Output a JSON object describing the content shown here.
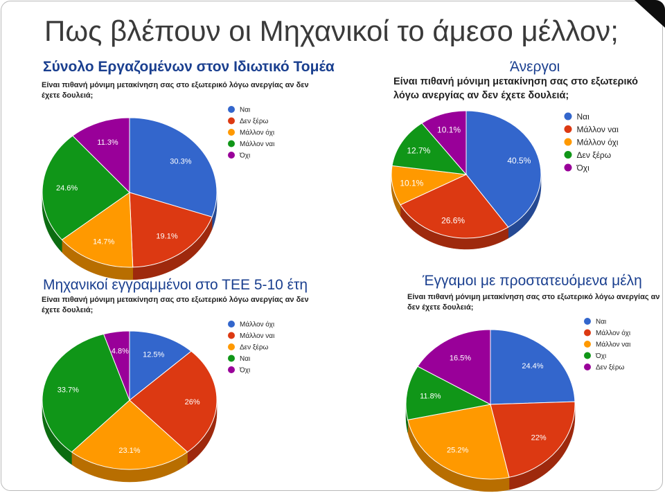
{
  "slide": {
    "title": "Πως βλέπουν οι Μηχανικοί το άμεσο μέλλον;"
  },
  "colors": {
    "blue": "#3366cc",
    "red": "#dc3912",
    "orange": "#ff9900",
    "green": "#109618",
    "purple": "#990099",
    "title_blue": "#1a3f8f"
  },
  "chart_data": [
    {
      "type": "pie",
      "section_title": "Σύνολο Εργαζομένων στον Ιδιωτικό Τομέα",
      "title": "Είναι πιθανή μόνιμη μετακίνηση σας στο εξωτερικό λόγω ανεργίας αν δεν έχετε δουλειά;",
      "legend_position": "right",
      "legend": [
        {
          "label": "Ναι",
          "color": "#3366cc"
        },
        {
          "label": "Δεν ξέρω",
          "color": "#dc3912"
        },
        {
          "label": "Μάλλον όχι",
          "color": "#ff9900"
        },
        {
          "label": "Μάλλον ναι",
          "color": "#109618"
        },
        {
          "label": "Όχι",
          "color": "#990099"
        }
      ],
      "slices": [
        {
          "label": "Ναι",
          "value": 30.3,
          "text": "30.3%",
          "color": "#3366cc"
        },
        {
          "label": "Δεν ξέρω",
          "value": 19.1,
          "text": "19.1%",
          "color": "#dc3912"
        },
        {
          "label": "Μάλλον όχι",
          "value": 14.7,
          "text": "14.7%",
          "color": "#ff9900"
        },
        {
          "label": "Μάλλον ναι",
          "value": 24.6,
          "text": "24.6%",
          "color": "#109618"
        },
        {
          "label": "Όχι",
          "value": 11.3,
          "text": "11.3%",
          "color": "#990099"
        }
      ]
    },
    {
      "type": "pie",
      "section_title": "Άνεργοι",
      "title": "Είναι πιθανή μόνιμη μετακίνηση σας στο εξωτερικό λόγω ανεργίας αν δεν έχετε δουλειά;",
      "legend_position": "right",
      "legend": [
        {
          "label": "Ναι",
          "color": "#3366cc"
        },
        {
          "label": "Μάλλον ναι",
          "color": "#dc3912"
        },
        {
          "label": "Μάλλον όχι",
          "color": "#ff9900"
        },
        {
          "label": "Δεν ξέρω",
          "color": "#109618"
        },
        {
          "label": "Όχι",
          "color": "#990099"
        }
      ],
      "slices": [
        {
          "label": "Ναι",
          "value": 40.5,
          "text": "40.5%",
          "color": "#3366cc"
        },
        {
          "label": "Μάλλον ναι",
          "value": 26.6,
          "text": "26.6%",
          "color": "#dc3912"
        },
        {
          "label": "Μάλλον όχι",
          "value": 10.1,
          "text": "10.1%",
          "color": "#ff9900"
        },
        {
          "label": "Δεν ξέρω",
          "value": 12.7,
          "text": "12.7%",
          "color": "#109618"
        },
        {
          "label": "Όχι",
          "value": 10.1,
          "text": "10.1%",
          "color": "#990099"
        }
      ]
    },
    {
      "type": "pie",
      "section_title": "Μηχανικοί εγγραμμένοι στο ΤΕΕ 5-10 έτη",
      "title": "Είναι πιθανή μόνιμη μετακίνηση σας στο εξωτερικό λόγω ανεργίας αν δεν έχετε δουλειά;",
      "legend_position": "right",
      "legend": [
        {
          "label": "Μάλλον όχι",
          "color": "#3366cc"
        },
        {
          "label": "Μάλλον ναι",
          "color": "#dc3912"
        },
        {
          "label": "Δεν ξέρω",
          "color": "#ff9900"
        },
        {
          "label": "Ναι",
          "color": "#109618"
        },
        {
          "label": "Όχι",
          "color": "#990099"
        }
      ],
      "slices": [
        {
          "label": "Μάλλον όχι",
          "value": 12.5,
          "text": "12.5%",
          "color": "#3366cc"
        },
        {
          "label": "Μάλλον ναι",
          "value": 26,
          "text": "26%",
          "color": "#dc3912"
        },
        {
          "label": "Δεν ξέρω",
          "value": 23.1,
          "text": "23.1%",
          "color": "#ff9900"
        },
        {
          "label": "Ναι",
          "value": 33.7,
          "text": "33.7%",
          "color": "#109618"
        },
        {
          "label": "Όχι",
          "value": 4.8,
          "text": "4.8%",
          "color": "#990099"
        }
      ]
    },
    {
      "type": "pie",
      "section_title": "Έγγαμοι με προστατευόμενα μέλη",
      "title": "Είναι πιθανή μόνιμη μετακίνηση σας στο εξωτερικό λόγω ανεργίας αν δεν έχετε δουλειά;",
      "legend_position": "right",
      "legend": [
        {
          "label": "Ναι",
          "color": "#3366cc"
        },
        {
          "label": "Μάλλον όχι",
          "color": "#dc3912"
        },
        {
          "label": "Μάλλον ναι",
          "color": "#ff9900"
        },
        {
          "label": "Όχι",
          "color": "#109618"
        },
        {
          "label": "Δεν ξέρω",
          "color": "#990099"
        }
      ],
      "slices": [
        {
          "label": "Ναι",
          "value": 24.4,
          "text": "24.4%",
          "color": "#3366cc"
        },
        {
          "label": "Μάλλον όχι",
          "value": 22,
          "text": "22%",
          "color": "#dc3912"
        },
        {
          "label": "Μάλλον ναι",
          "value": 25.2,
          "text": "25.2%",
          "color": "#ff9900"
        },
        {
          "label": "Όχι",
          "value": 11.8,
          "text": "11.8%",
          "color": "#109618"
        },
        {
          "label": "Δεν ξέρω",
          "value": 16.5,
          "text": "16.5%",
          "color": "#990099"
        }
      ]
    }
  ]
}
